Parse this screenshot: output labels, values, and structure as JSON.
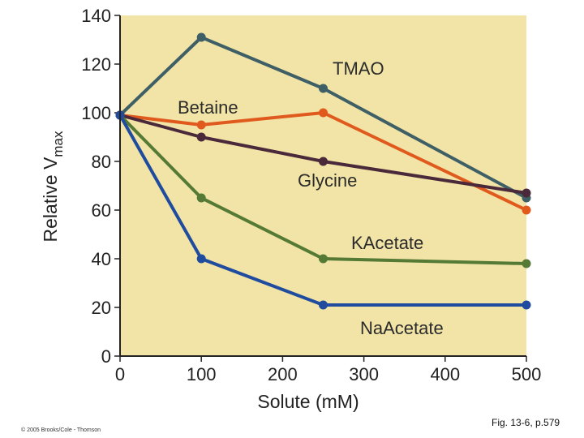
{
  "chart_data": {
    "type": "line",
    "title": "",
    "xlabel": "Solute (mM)",
    "ylabel_main": "Relative V",
    "ylabel_sub": "max",
    "xlim": [
      0,
      500
    ],
    "ylim": [
      0,
      140
    ],
    "x": [
      0,
      100,
      250,
      500
    ],
    "xticks": [
      0,
      100,
      200,
      300,
      400,
      500
    ],
    "yticks": [
      0,
      20,
      40,
      60,
      80,
      100,
      120,
      140
    ],
    "xtick_labels": [
      "0",
      "100",
      "200",
      "300",
      "400",
      "500"
    ],
    "ytick_labels": [
      "0",
      "20",
      "40",
      "60",
      "80",
      "100",
      "120",
      "140"
    ],
    "background_color": "#f2e4a6",
    "series": [
      {
        "name": "TMAO",
        "values": [
          99,
          131,
          110,
          65
        ],
        "color": "#3f5f66"
      },
      {
        "name": "Betaine",
        "values": [
          99,
          95,
          100,
          60
        ],
        "color": "#e05a1e"
      },
      {
        "name": "Glycine",
        "values": [
          99,
          90,
          80,
          67
        ],
        "color": "#4a2a3a"
      },
      {
        "name": "KAcetate",
        "values": [
          99,
          65,
          40,
          38
        ],
        "color": "#557a35"
      },
      {
        "name": "NaAcetate",
        "values": [
          99,
          40,
          21,
          21
        ],
        "color": "#1f4c9e"
      }
    ]
  },
  "footer": {
    "copyright": "© 2005 Brooks/Cole - Thomson",
    "figure_ref": "Fig. 13-6, p.579"
  }
}
